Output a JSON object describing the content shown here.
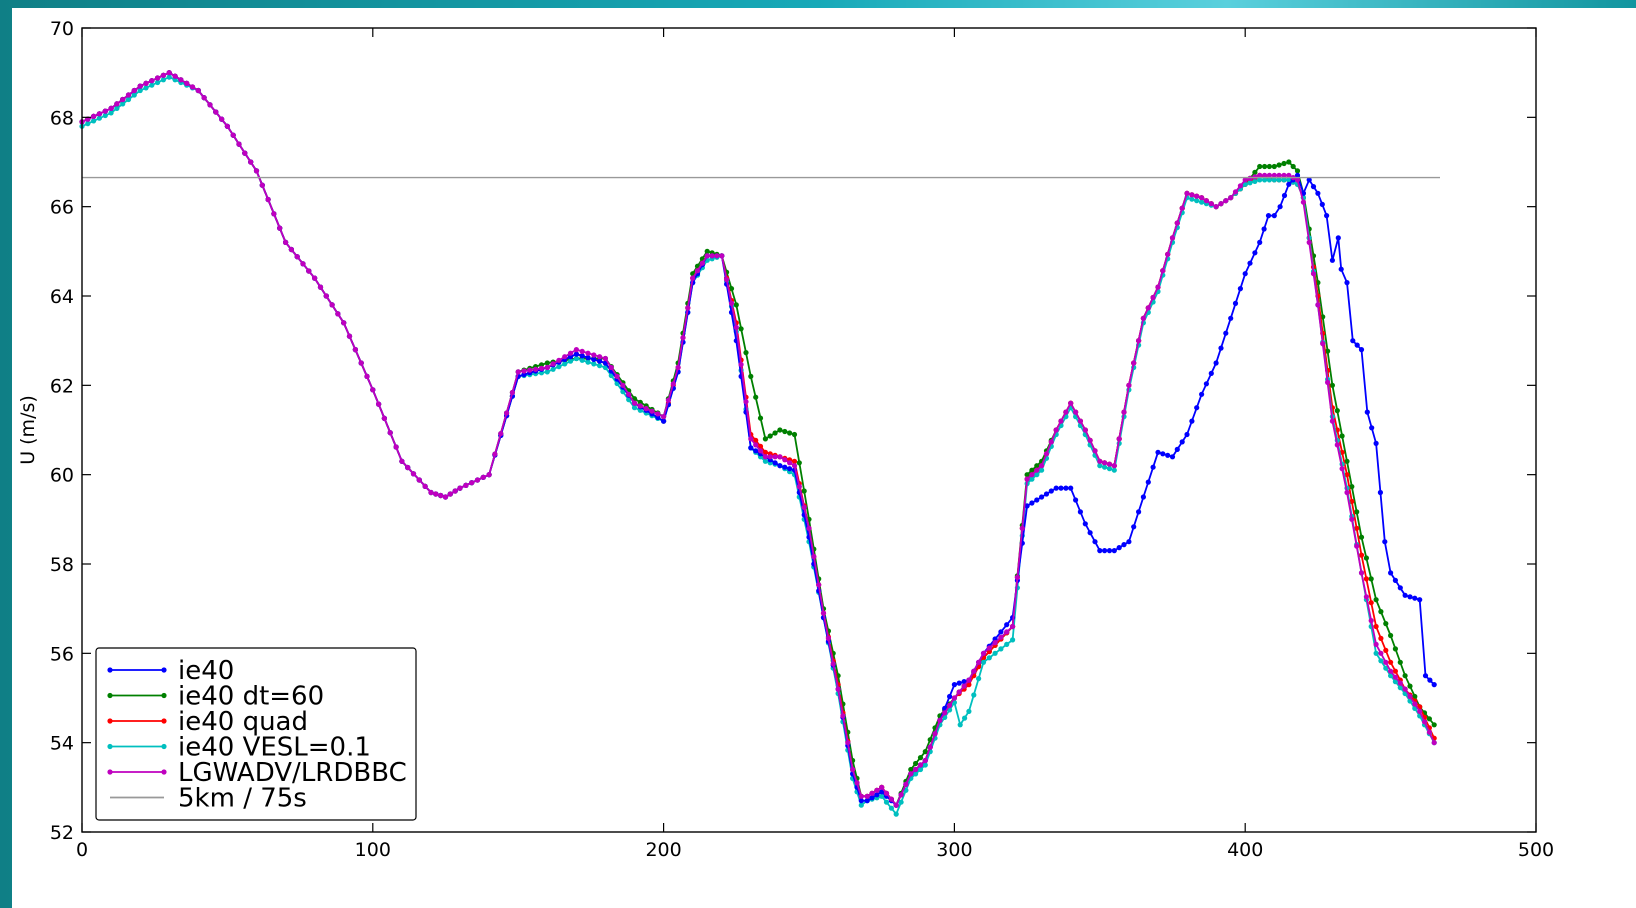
{
  "chart_data": {
    "type": "line",
    "title": "",
    "xlabel": "",
    "ylabel": "U (m/s)",
    "xlim": [
      0,
      500
    ],
    "ylim": [
      52,
      70
    ],
    "xticks": [
      0,
      100,
      200,
      300,
      400,
      500
    ],
    "yticks": [
      52,
      54,
      56,
      58,
      60,
      62,
      64,
      66,
      68,
      70
    ],
    "legend_position": "lower-left",
    "grid": false,
    "series": [
      {
        "name": "ie40",
        "color": "#0000ff",
        "marker": true,
        "x": [
          0,
          10,
          20,
          30,
          40,
          50,
          60,
          70,
          80,
          90,
          100,
          110,
          120,
          125,
          130,
          140,
          150,
          160,
          170,
          180,
          190,
          200,
          205,
          210,
          215,
          220,
          225,
          230,
          235,
          240,
          245,
          250,
          255,
          260,
          265,
          268,
          270,
          275,
          280,
          285,
          290,
          295,
          300,
          305,
          310,
          320,
          325,
          330,
          335,
          340,
          345,
          350,
          355,
          360,
          365,
          370,
          375,
          380,
          385,
          390,
          395,
          400,
          405,
          408,
          410,
          412,
          415,
          418,
          420,
          422,
          425,
          428,
          430,
          432,
          433,
          435,
          437,
          440,
          442,
          445,
          448,
          450,
          455,
          460,
          462,
          465
        ],
        "y": [
          67.9,
          68.2,
          68.7,
          69.0,
          68.6,
          67.8,
          66.8,
          65.2,
          64.4,
          63.4,
          61.9,
          60.3,
          59.6,
          59.5,
          59.7,
          60.0,
          62.2,
          62.4,
          62.7,
          62.5,
          61.6,
          61.2,
          62.3,
          64.3,
          64.9,
          64.9,
          63.0,
          60.6,
          60.4,
          60.2,
          60.1,
          58.6,
          56.8,
          55.2,
          53.3,
          52.7,
          52.7,
          52.9,
          52.6,
          53.3,
          53.6,
          54.5,
          55.3,
          55.4,
          56.0,
          56.8,
          59.3,
          59.5,
          59.7,
          59.7,
          58.9,
          58.3,
          58.3,
          58.5,
          59.5,
          60.5,
          60.4,
          60.9,
          61.8,
          62.5,
          63.5,
          64.5,
          65.2,
          65.8,
          65.8,
          66.0,
          66.5,
          66.7,
          66.3,
          66.6,
          66.3,
          65.8,
          64.8,
          65.3,
          64.6,
          64.3,
          63.0,
          62.8,
          61.4,
          60.7,
          58.5,
          57.8,
          57.3,
          57.2,
          55.5,
          55.3
        ]
      },
      {
        "name": "ie40 dt=60",
        "color": "#008000",
        "marker": true,
        "x": [
          0,
          10,
          20,
          30,
          40,
          50,
          60,
          70,
          80,
          90,
          100,
          110,
          120,
          125,
          130,
          140,
          150,
          160,
          170,
          180,
          190,
          200,
          205,
          210,
          215,
          220,
          225,
          230,
          235,
          240,
          245,
          250,
          255,
          260,
          265,
          268,
          270,
          275,
          280,
          285,
          290,
          295,
          300,
          305,
          310,
          320,
          325,
          330,
          335,
          340,
          345,
          350,
          355,
          360,
          365,
          370,
          375,
          380,
          385,
          390,
          395,
          400,
          405,
          410,
          415,
          418,
          420,
          422,
          425,
          430,
          435,
          440,
          445,
          450,
          455,
          460,
          465
        ],
        "y": [
          67.9,
          68.2,
          68.7,
          69.0,
          68.6,
          67.8,
          66.8,
          65.2,
          64.4,
          63.4,
          61.9,
          60.3,
          59.6,
          59.5,
          59.7,
          60.0,
          62.3,
          62.5,
          62.6,
          62.6,
          61.7,
          61.3,
          62.5,
          64.5,
          65.0,
          64.9,
          63.8,
          62.2,
          60.8,
          61.0,
          60.9,
          59.0,
          57.0,
          55.5,
          53.6,
          52.8,
          52.8,
          53.0,
          52.6,
          53.4,
          53.8,
          54.6,
          55.0,
          55.4,
          55.9,
          56.6,
          60.0,
          60.3,
          61.0,
          61.6,
          61.0,
          60.3,
          60.2,
          62.0,
          63.5,
          64.2,
          65.3,
          66.3,
          66.2,
          66.0,
          66.2,
          66.5,
          66.9,
          66.9,
          67.0,
          66.8,
          66.3,
          65.5,
          64.3,
          62.0,
          60.3,
          58.6,
          57.2,
          56.4,
          55.5,
          54.8,
          54.4
        ]
      },
      {
        "name": "ie40 quad",
        "color": "#ff0000",
        "marker": true,
        "x": [
          0,
          10,
          20,
          30,
          40,
          50,
          60,
          70,
          80,
          90,
          100,
          110,
          120,
          125,
          130,
          140,
          150,
          160,
          170,
          180,
          190,
          200,
          205,
          210,
          215,
          220,
          225,
          230,
          235,
          240,
          245,
          250,
          255,
          260,
          265,
          268,
          270,
          275,
          280,
          285,
          290,
          295,
          300,
          305,
          310,
          320,
          325,
          330,
          335,
          340,
          345,
          350,
          355,
          360,
          365,
          370,
          375,
          380,
          385,
          390,
          395,
          400,
          405,
          410,
          415,
          418,
          420,
          422,
          425,
          430,
          435,
          440,
          445,
          450,
          455,
          460,
          465
        ],
        "y": [
          67.9,
          68.2,
          68.7,
          69.0,
          68.6,
          67.8,
          66.8,
          65.2,
          64.4,
          63.4,
          61.9,
          60.3,
          59.6,
          59.5,
          59.7,
          60.0,
          62.2,
          62.4,
          62.7,
          62.5,
          61.6,
          61.2,
          62.4,
          64.4,
          64.9,
          64.9,
          63.4,
          60.9,
          60.5,
          60.4,
          60.3,
          58.8,
          56.9,
          55.3,
          53.4,
          52.8,
          52.8,
          53.0,
          52.6,
          53.3,
          53.6,
          54.5,
          55.0,
          55.3,
          55.9,
          56.6,
          59.9,
          60.2,
          61.0,
          61.6,
          61.0,
          60.3,
          60.2,
          62.0,
          63.5,
          64.2,
          65.3,
          66.3,
          66.2,
          66.0,
          66.2,
          66.5,
          66.7,
          66.6,
          66.6,
          66.5,
          66.2,
          65.3,
          64.0,
          61.5,
          60.0,
          58.2,
          56.6,
          55.8,
          55.2,
          54.8,
          54.1
        ]
      },
      {
        "name": "ie40 VESL=0.1",
        "color": "#00bfbf",
        "marker": true,
        "x": [
          0,
          10,
          20,
          30,
          40,
          50,
          60,
          70,
          80,
          90,
          100,
          110,
          120,
          125,
          130,
          140,
          150,
          160,
          170,
          180,
          190,
          200,
          205,
          210,
          215,
          220,
          225,
          230,
          235,
          240,
          245,
          250,
          255,
          260,
          265,
          268,
          270,
          275,
          280,
          285,
          290,
          295,
          300,
          302,
          305,
          310,
          320,
          325,
          330,
          335,
          340,
          345,
          350,
          355,
          360,
          365,
          370,
          375,
          380,
          385,
          390,
          395,
          400,
          405,
          410,
          415,
          418,
          420,
          422,
          425,
          430,
          435,
          440,
          445,
          450,
          455,
          460,
          465
        ],
        "y": [
          67.8,
          68.1,
          68.6,
          68.9,
          68.6,
          67.8,
          66.8,
          65.2,
          64.4,
          63.4,
          61.9,
          60.3,
          59.6,
          59.5,
          59.7,
          60.0,
          62.2,
          62.3,
          62.6,
          62.4,
          61.5,
          61.2,
          62.3,
          64.3,
          64.8,
          64.9,
          63.2,
          60.6,
          60.3,
          60.2,
          60.0,
          58.5,
          56.8,
          55.1,
          53.2,
          52.6,
          52.7,
          52.8,
          52.4,
          53.2,
          53.5,
          54.4,
          54.9,
          54.4,
          54.7,
          55.8,
          56.3,
          59.8,
          60.1,
          60.9,
          61.5,
          60.9,
          60.2,
          60.1,
          61.9,
          63.4,
          64.1,
          65.2,
          66.2,
          66.1,
          66.0,
          66.2,
          66.5,
          66.6,
          66.6,
          66.6,
          66.5,
          66.2,
          65.3,
          63.8,
          61.3,
          59.7,
          57.8,
          56.0,
          55.5,
          55.1,
          54.6,
          54.0
        ]
      },
      {
        "name": "LGWADV/LRDBBC",
        "color": "#bf00bf",
        "marker": true,
        "x": [
          0,
          10,
          20,
          30,
          40,
          50,
          60,
          70,
          80,
          90,
          100,
          110,
          120,
          125,
          130,
          140,
          150,
          160,
          170,
          180,
          190,
          200,
          205,
          210,
          215,
          220,
          225,
          230,
          235,
          240,
          245,
          250,
          255,
          260,
          265,
          268,
          270,
          275,
          280,
          285,
          290,
          295,
          300,
          305,
          310,
          320,
          325,
          330,
          335,
          340,
          345,
          350,
          355,
          360,
          365,
          370,
          375,
          380,
          385,
          390,
          395,
          400,
          405,
          410,
          415,
          418,
          420,
          422,
          425,
          430,
          435,
          440,
          445,
          450,
          455,
          460,
          465
        ],
        "y": [
          67.9,
          68.2,
          68.7,
          69.0,
          68.6,
          67.8,
          66.8,
          65.2,
          64.4,
          63.4,
          61.9,
          60.3,
          59.6,
          59.5,
          59.7,
          60.0,
          62.3,
          62.4,
          62.8,
          62.6,
          61.6,
          61.3,
          62.4,
          64.4,
          64.9,
          64.9,
          63.3,
          60.8,
          60.4,
          60.4,
          60.2,
          58.8,
          56.9,
          55.2,
          53.4,
          52.8,
          52.8,
          53.0,
          52.6,
          53.3,
          53.6,
          54.5,
          55.0,
          55.4,
          56.0,
          56.6,
          59.9,
          60.2,
          61.0,
          61.6,
          61.0,
          60.3,
          60.2,
          62.0,
          63.5,
          64.2,
          65.3,
          66.3,
          66.2,
          66.0,
          66.2,
          66.6,
          66.7,
          66.7,
          66.7,
          66.6,
          66.1,
          65.2,
          63.8,
          61.2,
          59.6,
          57.8,
          56.2,
          55.6,
          55.2,
          54.7,
          54.0
        ]
      },
      {
        "name": "5km / 75s",
        "color": "#999999",
        "marker": false,
        "x": [
          0,
          467
        ],
        "y": [
          66.65,
          66.65
        ]
      }
    ]
  }
}
